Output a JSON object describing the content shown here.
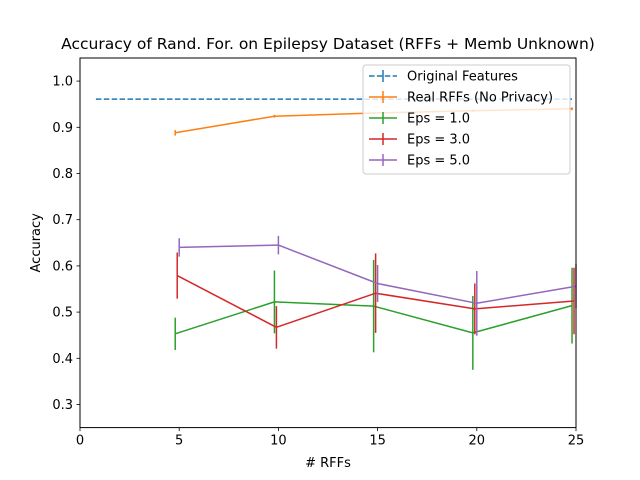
{
  "chart_data": {
    "type": "line",
    "title": "Accuracy of Rand. For. on Epilepsy Dataset (RFFs + Memb Unknown)",
    "xlabel": "# RFFs",
    "ylabel": "Accuracy",
    "xlim": [
      0,
      25
    ],
    "ylim": [
      0.25,
      1.05
    ],
    "xticks": [
      "0",
      "5",
      "10",
      "15",
      "20",
      "25"
    ],
    "yticks": [
      "0.3",
      "0.4",
      "0.5",
      "0.6",
      "0.7",
      "0.8",
      "0.9",
      "1.0"
    ],
    "grid": false,
    "legend_position": "top-right",
    "series": [
      {
        "name": "Original Features",
        "color": "#1f77b4",
        "style": "dashed",
        "x": [
          0.8,
          24.8
        ],
        "y": [
          0.961,
          0.961
        ],
        "err": [
          0.0,
          0.0
        ]
      },
      {
        "name": "Real RFFs (No Privacy)",
        "color": "#ff7f0e",
        "style": "solid",
        "x": [
          4.8,
          9.8,
          14.8,
          19.8,
          24.8
        ],
        "y": [
          0.888,
          0.924,
          0.931,
          0.936,
          0.94
        ],
        "err": [
          0.006,
          0.003,
          0.003,
          0.003,
          0.003
        ]
      },
      {
        "name": "Eps = 1.0",
        "color": "#2ca02c",
        "style": "solid",
        "x": [
          4.8,
          9.8,
          14.8,
          19.8,
          24.8
        ],
        "y": [
          0.453,
          0.522,
          0.513,
          0.455,
          0.514
        ],
        "err": [
          0.035,
          0.068,
          0.1,
          0.08,
          0.082
        ]
      },
      {
        "name": "Eps = 3.0",
        "color": "#d62728",
        "style": "solid",
        "x": [
          4.9,
          9.9,
          14.9,
          19.9,
          24.9
        ],
        "y": [
          0.579,
          0.467,
          0.541,
          0.507,
          0.524
        ],
        "err": [
          0.05,
          0.046,
          0.086,
          0.055,
          0.072
        ]
      },
      {
        "name": "Eps = 5.0",
        "color": "#9467bd",
        "style": "solid",
        "x": [
          5.0,
          10.0,
          15.0,
          20.0,
          25.0
        ],
        "y": [
          0.64,
          0.645,
          0.562,
          0.519,
          0.556
        ],
        "err": [
          0.02,
          0.02,
          0.04,
          0.07,
          0.048
        ]
      }
    ]
  }
}
